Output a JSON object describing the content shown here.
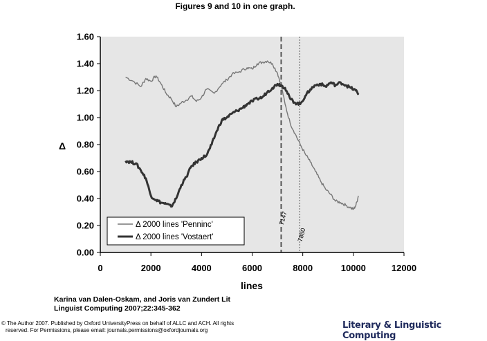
{
  "page": {
    "title": "Figures 9 and 10 in one graph.",
    "citation_line1": "Karina van Dalen-Oskam, and Joris van Zundert Lit",
    "citation_line2": "Linguist Computing 2007;22:345-362",
    "copyright_line1": "© The Author 2007. Published by Oxford UniversityPress on behalf of ALLC and ACH. All rights",
    "copyright_line2": "reserved. For Permissions, please email: journals.permissions@oxfordjournals.org",
    "brand": "Literary & Linguistic Computing"
  },
  "chart_data": {
    "type": "line",
    "title": "Figures 9 and 10 in one graph.",
    "xlabel": "lines",
    "ylabel": "Δ",
    "xlim": [
      0,
      12000
    ],
    "ylim": [
      0,
      1.6
    ],
    "xticks": [
      "0",
      "2000",
      "4000",
      "6000",
      "8000",
      "10000",
      "12000"
    ],
    "yticks": [
      "0.00",
      "0.20",
      "0.40",
      "0.60",
      "0.80",
      "1.00",
      "1.20",
      "1.40",
      "1.60"
    ],
    "grid": false,
    "plot_background": "#e6e6e6",
    "legend_position": "bottom-left",
    "vlines": [
      {
        "x": 7147,
        "label": "7147",
        "style": "dashed"
      },
      {
        "x": 7880,
        "label": "7880",
        "style": "dotted"
      }
    ],
    "series": [
      {
        "name": "Δ 2000 lines 'Penninc'",
        "color": "#777777",
        "x": [
          1000,
          1300,
          1600,
          1800,
          2000,
          2200,
          2400,
          2600,
          2800,
          3000,
          3200,
          3400,
          3600,
          3800,
          4000,
          4200,
          4500,
          4800,
          5000,
          5200,
          5500,
          5800,
          6000,
          6200,
          6400,
          6600,
          6800,
          7000,
          7147,
          7300,
          7500,
          7700,
          7900,
          8100,
          8300,
          8500,
          8700,
          8900,
          9100,
          9300,
          9500,
          9700,
          9900,
          10000,
          10100,
          10200
        ],
        "y": [
          1.3,
          1.27,
          1.23,
          1.29,
          1.27,
          1.31,
          1.25,
          1.18,
          1.14,
          1.08,
          1.11,
          1.13,
          1.16,
          1.12,
          1.15,
          1.21,
          1.18,
          1.25,
          1.28,
          1.32,
          1.34,
          1.37,
          1.36,
          1.4,
          1.41,
          1.42,
          1.4,
          1.33,
          1.24,
          1.1,
          0.96,
          0.88,
          0.8,
          0.73,
          0.67,
          0.6,
          0.53,
          0.47,
          0.43,
          0.38,
          0.37,
          0.35,
          0.33,
          0.32,
          0.35,
          0.42
        ]
      },
      {
        "name": "Δ 2000 lines 'Vostaert'",
        "color": "#333333",
        "x": [
          1000,
          1200,
          1400,
          1600,
          1800,
          2000,
          2200,
          2400,
          2600,
          2800,
          3000,
          3200,
          3400,
          3600,
          3800,
          4000,
          4200,
          4400,
          4600,
          4800,
          5000,
          5200,
          5400,
          5600,
          5800,
          6000,
          6200,
          6400,
          6600,
          6800,
          7000,
          7147,
          7300,
          7500,
          7700,
          7900,
          8100,
          8300,
          8500,
          8700,
          8900,
          9100,
          9300,
          9500,
          9700,
          9900,
          10100,
          10200
        ],
        "y": [
          0.68,
          0.67,
          0.66,
          0.61,
          0.55,
          0.42,
          0.39,
          0.37,
          0.36,
          0.34,
          0.4,
          0.5,
          0.56,
          0.64,
          0.67,
          0.7,
          0.72,
          0.8,
          0.9,
          0.98,
          1.0,
          1.03,
          1.05,
          1.07,
          1.1,
          1.12,
          1.14,
          1.15,
          1.19,
          1.22,
          1.25,
          1.24,
          1.22,
          1.14,
          1.11,
          1.1,
          1.16,
          1.21,
          1.24,
          1.25,
          1.23,
          1.26,
          1.24,
          1.26,
          1.24,
          1.22,
          1.2,
          1.18
        ]
      }
    ]
  }
}
